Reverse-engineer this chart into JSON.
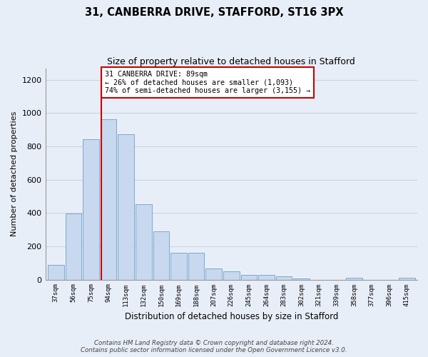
{
  "title1": "31, CANBERRA DRIVE, STAFFORD, ST16 3PX",
  "title2": "Size of property relative to detached houses in Stafford",
  "xlabel": "Distribution of detached houses by size in Stafford",
  "ylabel": "Number of detached properties",
  "categories": [
    "37sqm",
    "56sqm",
    "75sqm",
    "94sqm",
    "113sqm",
    "132sqm",
    "150sqm",
    "169sqm",
    "188sqm",
    "207sqm",
    "226sqm",
    "245sqm",
    "264sqm",
    "283sqm",
    "302sqm",
    "321sqm",
    "339sqm",
    "358sqm",
    "377sqm",
    "396sqm",
    "415sqm"
  ],
  "bar_heights": [
    90,
    395,
    845,
    965,
    875,
    455,
    290,
    162,
    162,
    68,
    50,
    30,
    27,
    18,
    8,
    0,
    0,
    10,
    0,
    0,
    12
  ],
  "bar_color": "#c8d8ee",
  "bar_edge_color": "#7aaad0",
  "grid_color": "#c8d4e4",
  "vline_x_index": 2.575,
  "vline_color": "#cc0000",
  "annotation_text": "31 CANBERRA DRIVE: 89sqm\n← 26% of detached houses are smaller (1,093)\n74% of semi-detached houses are larger (3,155) →",
  "annotation_box_color": "#ffffff",
  "annotation_box_edge": "#cc0000",
  "ylim": [
    0,
    1270
  ],
  "yticks": [
    0,
    200,
    400,
    600,
    800,
    1000,
    1200
  ],
  "background_color": "#e8eef8",
  "plot_background": "#e8eef8",
  "footer_line1": "Contains HM Land Registry data © Crown copyright and database right 2024.",
  "footer_line2": "Contains public sector information licensed under the Open Government Licence v3.0."
}
